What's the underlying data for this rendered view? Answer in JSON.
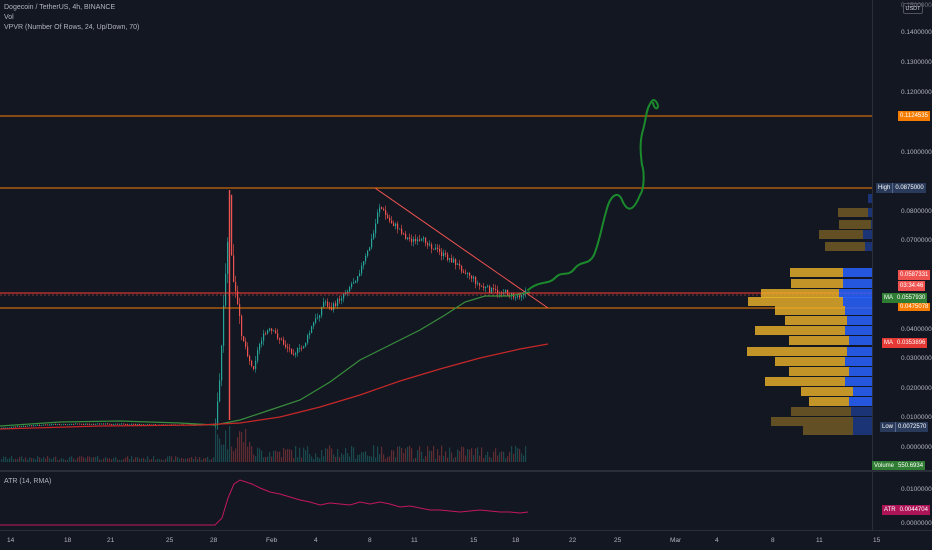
{
  "legend": {
    "symbol": "Dogecoin / TetherUS, 4h, BINANCE",
    "volume": "Vol",
    "vpvr": "VPVR (Number Of Rows, 24, Up/Down, 70)",
    "atr": "ATR (14, RMA)"
  },
  "currency_button": "USDT",
  "price_axis": {
    "ticks": [
      "0.1400000",
      "0.1300000",
      "0.1200000",
      "0.1000000",
      "0.0800000",
      "0.0700000",
      "0.0400000",
      "0.0300000",
      "0.0200000",
      "0.0100000",
      "0.0000000"
    ],
    "scale_top_partial": "0.1500000"
  },
  "tags": {
    "level_high": "0.1124535",
    "high_label": "High",
    "high_value": "0.0875000",
    "last_price": "0.0587331",
    "countdown": "03:34:46",
    "ma1_label": "MA",
    "ma1_value": "0.0557930",
    "level_low_mid": "0.0475078",
    "ma2_label": "MA",
    "ma2_value": "0.0353896",
    "low_label": "Low",
    "low_value": "0.0072570",
    "volume_label": "Volume",
    "volume_value": "550.6934"
  },
  "atr_axis": {
    "ticks": [
      "0.0100000",
      "0.0000000"
    ],
    "tag_label": "ATR",
    "tag_value": "0.0044704"
  },
  "time_axis": {
    "labels": [
      "14",
      "18",
      "21",
      "25",
      "28",
      "Feb",
      "4",
      "8",
      "11",
      "15",
      "18",
      "22",
      "25",
      "Mar",
      "4",
      "8",
      "11",
      "15"
    ]
  },
  "colors": {
    "background": "#131722",
    "candle_up": "#26a69a",
    "candle_down": "#ef5350",
    "ma_fast": "#4caf50",
    "ma_slow": "#e53935",
    "vpvr_up": "#2962ff",
    "vpvr_down": "#ffb74d",
    "level_line": "#f57c00",
    "projection": "#1b8a2c"
  },
  "chart_data": {
    "type": "candlestick",
    "title": "Dogecoin / TetherUS, 4h, BINANCE",
    "x": [
      "14",
      "18",
      "21",
      "25",
      "28",
      "Feb",
      "4",
      "8",
      "11",
      "15",
      "18"
    ],
    "price_range": [
      0.0,
      0.15
    ],
    "key_values": {
      "high": 0.0875,
      "low": 0.007257,
      "last": 0.0587331,
      "ma_fast": 0.055793,
      "ma_slow": 0.0353896,
      "resistance": [
        0.1124535,
        0.0875
      ],
      "support": [
        0.0587331,
        0.0475078
      ]
    },
    "series": [
      {
        "name": "MA",
        "values": [
          0.0035,
          0.005,
          0.0052,
          0.005,
          0.006,
          0.015,
          0.023,
          0.032,
          0.042,
          0.052,
          0.0558
        ]
      },
      {
        "name": "MA",
        "values": [
          0.003,
          0.004,
          0.0045,
          0.0045,
          0.005,
          0.0085,
          0.012,
          0.017,
          0.023,
          0.029,
          0.0354
        ]
      }
    ],
    "atr": {
      "name": "ATR (14, RMA)",
      "last": 0.0044704,
      "range": [
        0.0,
        0.013
      ]
    },
    "grid": false
  }
}
